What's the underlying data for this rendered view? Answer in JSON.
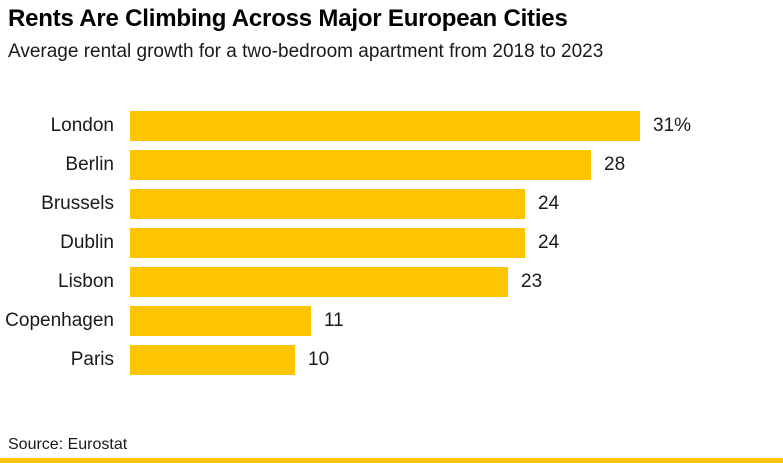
{
  "header": {
    "title": "Rents Are Climbing Across Major European Cities",
    "subtitle": "Average rental growth for a two-bedroom apartment from 2018 to 2023"
  },
  "chart_data": {
    "type": "bar",
    "orientation": "horizontal",
    "title": "Rents Are Climbing Across Major European Cities",
    "subtitle": "Average rental growth for a two-bedroom apartment from 2018 to 2023",
    "categories": [
      "London",
      "Berlin",
      "Brussels",
      "Dublin",
      "Lisbon",
      "Copenhagen",
      "Paris"
    ],
    "values": [
      31,
      28,
      24,
      24,
      23,
      11,
      10
    ],
    "value_labels": [
      "31%",
      "28",
      "24",
      "24",
      "23",
      "11",
      "10"
    ],
    "unit": "percent",
    "xlim": [
      0,
      31
    ],
    "grid": false,
    "legend": false,
    "bar_color": "#fdc500"
  },
  "footer": {
    "source": "Source: Eurostat"
  },
  "colors": {
    "accent": "#fdc500",
    "title_text": "#000000",
    "body_text": "#1a1a1a",
    "background": "#ffffff"
  }
}
